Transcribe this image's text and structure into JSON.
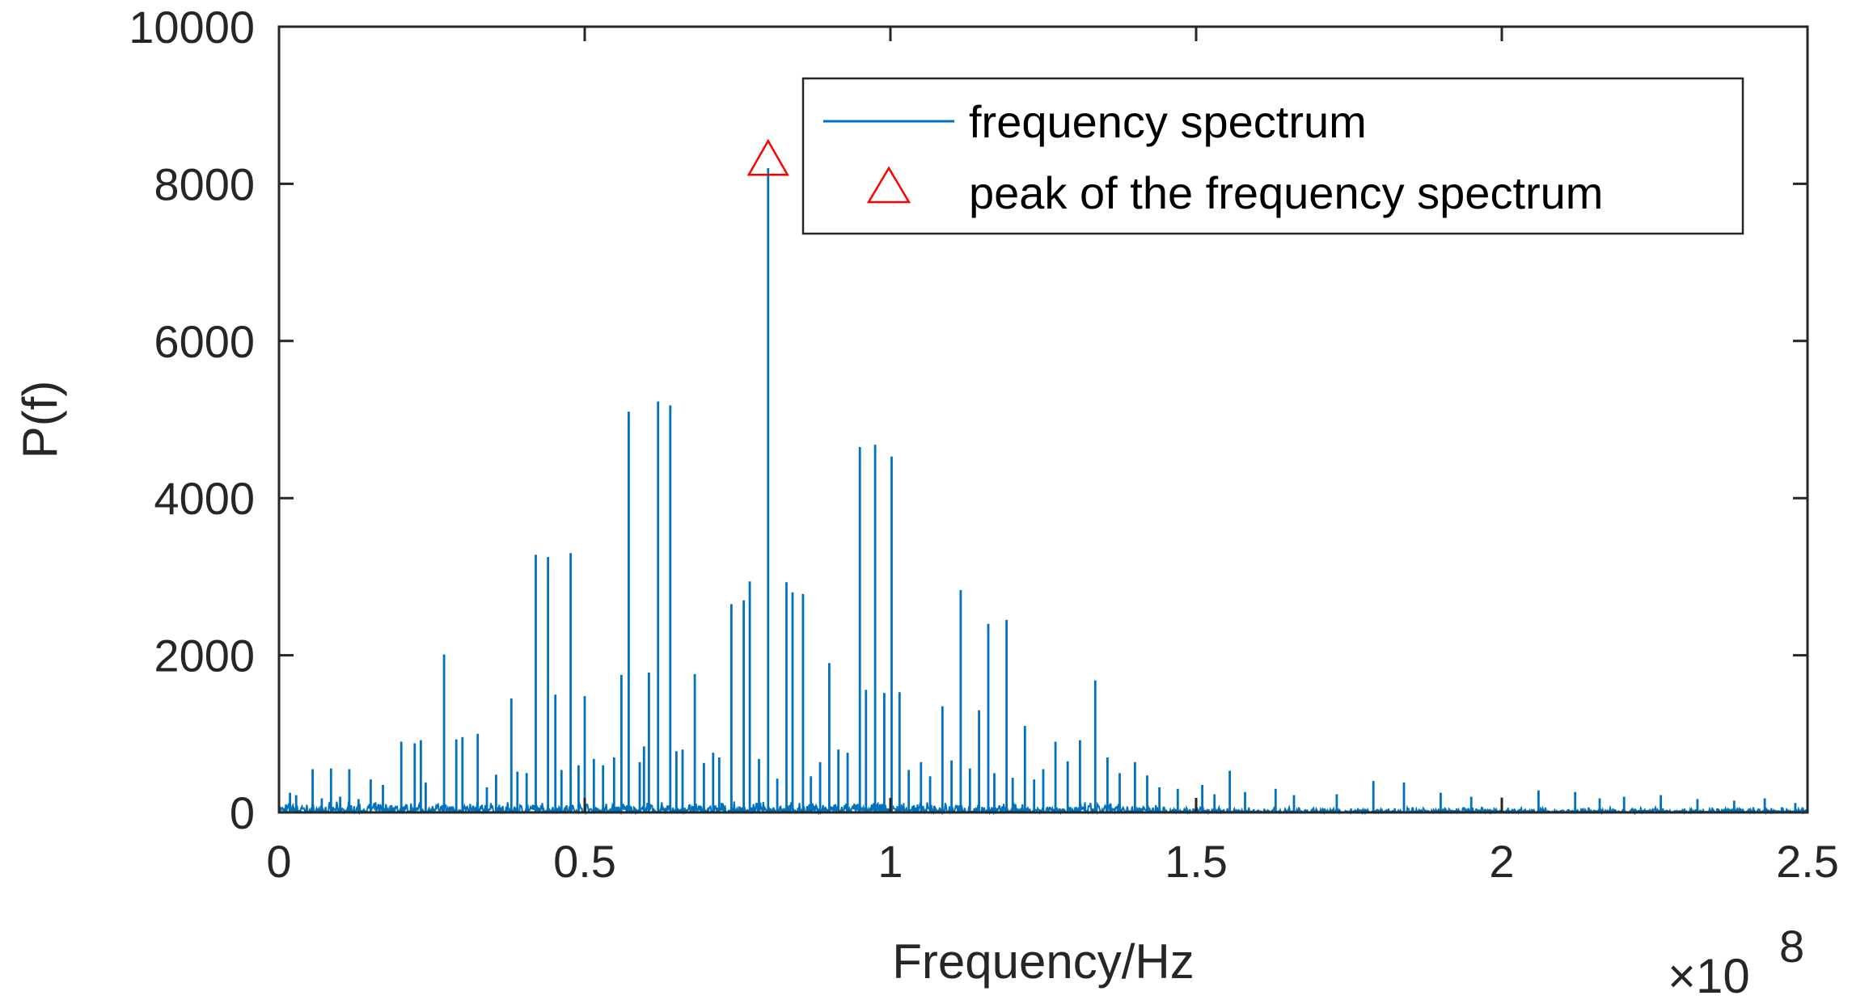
{
  "chart_data": {
    "type": "line",
    "xlabel": "Frequency/Hz",
    "ylabel": "P(f)",
    "x_exponent_label": "×10",
    "x_exponent": "8",
    "xlim": [
      0,
      2.5
    ],
    "ylim": [
      0,
      10000
    ],
    "x_ticks": [
      0,
      0.5,
      1,
      1.5,
      2,
      2.5
    ],
    "x_tick_labels": [
      "0",
      "0.5",
      "1",
      "1.5",
      "2",
      "2.5"
    ],
    "y_ticks": [
      0,
      2000,
      4000,
      6000,
      8000,
      10000
    ],
    "y_tick_labels": [
      "0",
      "2000",
      "4000",
      "6000",
      "8000",
      "10000"
    ],
    "grid": false,
    "legend_position": "top-right",
    "series": [
      {
        "name": "frequency spectrum",
        "color": "#0072bd",
        "x": [
          0.018,
          0.028,
          0.055,
          0.07,
          0.085,
          0.1,
          0.115,
          0.13,
          0.15,
          0.17,
          0.2,
          0.222,
          0.232,
          0.24,
          0.27,
          0.29,
          0.3,
          0.325,
          0.34,
          0.355,
          0.38,
          0.39,
          0.405,
          0.42,
          0.44,
          0.452,
          0.462,
          0.477,
          0.49,
          0.5,
          0.515,
          0.53,
          0.548,
          0.56,
          0.572,
          0.59,
          0.597,
          0.605,
          0.62,
          0.64,
          0.65,
          0.66,
          0.68,
          0.695,
          0.71,
          0.72,
          0.74,
          0.76,
          0.77,
          0.785,
          0.8,
          0.815,
          0.83,
          0.84,
          0.857,
          0.87,
          0.885,
          0.9,
          0.915,
          0.93,
          0.95,
          0.96,
          0.975,
          0.99,
          1.002,
          1.015,
          1.03,
          1.05,
          1.065,
          1.085,
          1.1,
          1.115,
          1.13,
          1.145,
          1.16,
          1.17,
          1.19,
          1.2,
          1.22,
          1.235,
          1.25,
          1.27,
          1.29,
          1.31,
          1.335,
          1.355,
          1.375,
          1.4,
          1.42,
          1.44,
          1.47,
          1.51,
          1.53,
          1.555,
          1.58,
          1.63,
          1.66,
          1.73,
          1.79,
          1.84,
          1.9,
          1.95,
          2.0,
          2.06,
          2.12,
          2.16,
          2.2,
          2.26,
          2.32,
          2.38,
          2.43,
          2.48
        ],
        "y": [
          250,
          220,
          550,
          180,
          560,
          200,
          550,
          170,
          420,
          350,
          900,
          880,
          920,
          380,
          2010,
          930,
          960,
          1000,
          320,
          480,
          1450,
          520,
          500,
          3280,
          3250,
          1500,
          540,
          3300,
          600,
          1480,
          680,
          600,
          700,
          1750,
          5100,
          640,
          840,
          1780,
          5230,
          5180,
          780,
          800,
          1760,
          630,
          760,
          700,
          2650,
          2700,
          2940,
          680,
          8200,
          430,
          2930,
          2800,
          2780,
          460,
          640,
          1900,
          800,
          760,
          4650,
          1560,
          4680,
          1520,
          4530,
          1530,
          540,
          640,
          460,
          1350,
          660,
          2830,
          560,
          1300,
          2400,
          500,
          2450,
          440,
          1100,
          420,
          550,
          900,
          650,
          920,
          1680,
          700,
          500,
          640,
          470,
          320,
          300,
          350,
          230,
          530,
          260,
          300,
          220,
          230,
          400,
          380,
          250,
          200,
          190,
          280,
          260,
          180,
          200,
          220,
          170,
          150,
          180,
          120
        ]
      }
    ],
    "peak": {
      "name": "peak of the frequency spectrum",
      "x": 0.8,
      "y": 8300,
      "marker": "triangle",
      "color": "#ff0000"
    }
  }
}
